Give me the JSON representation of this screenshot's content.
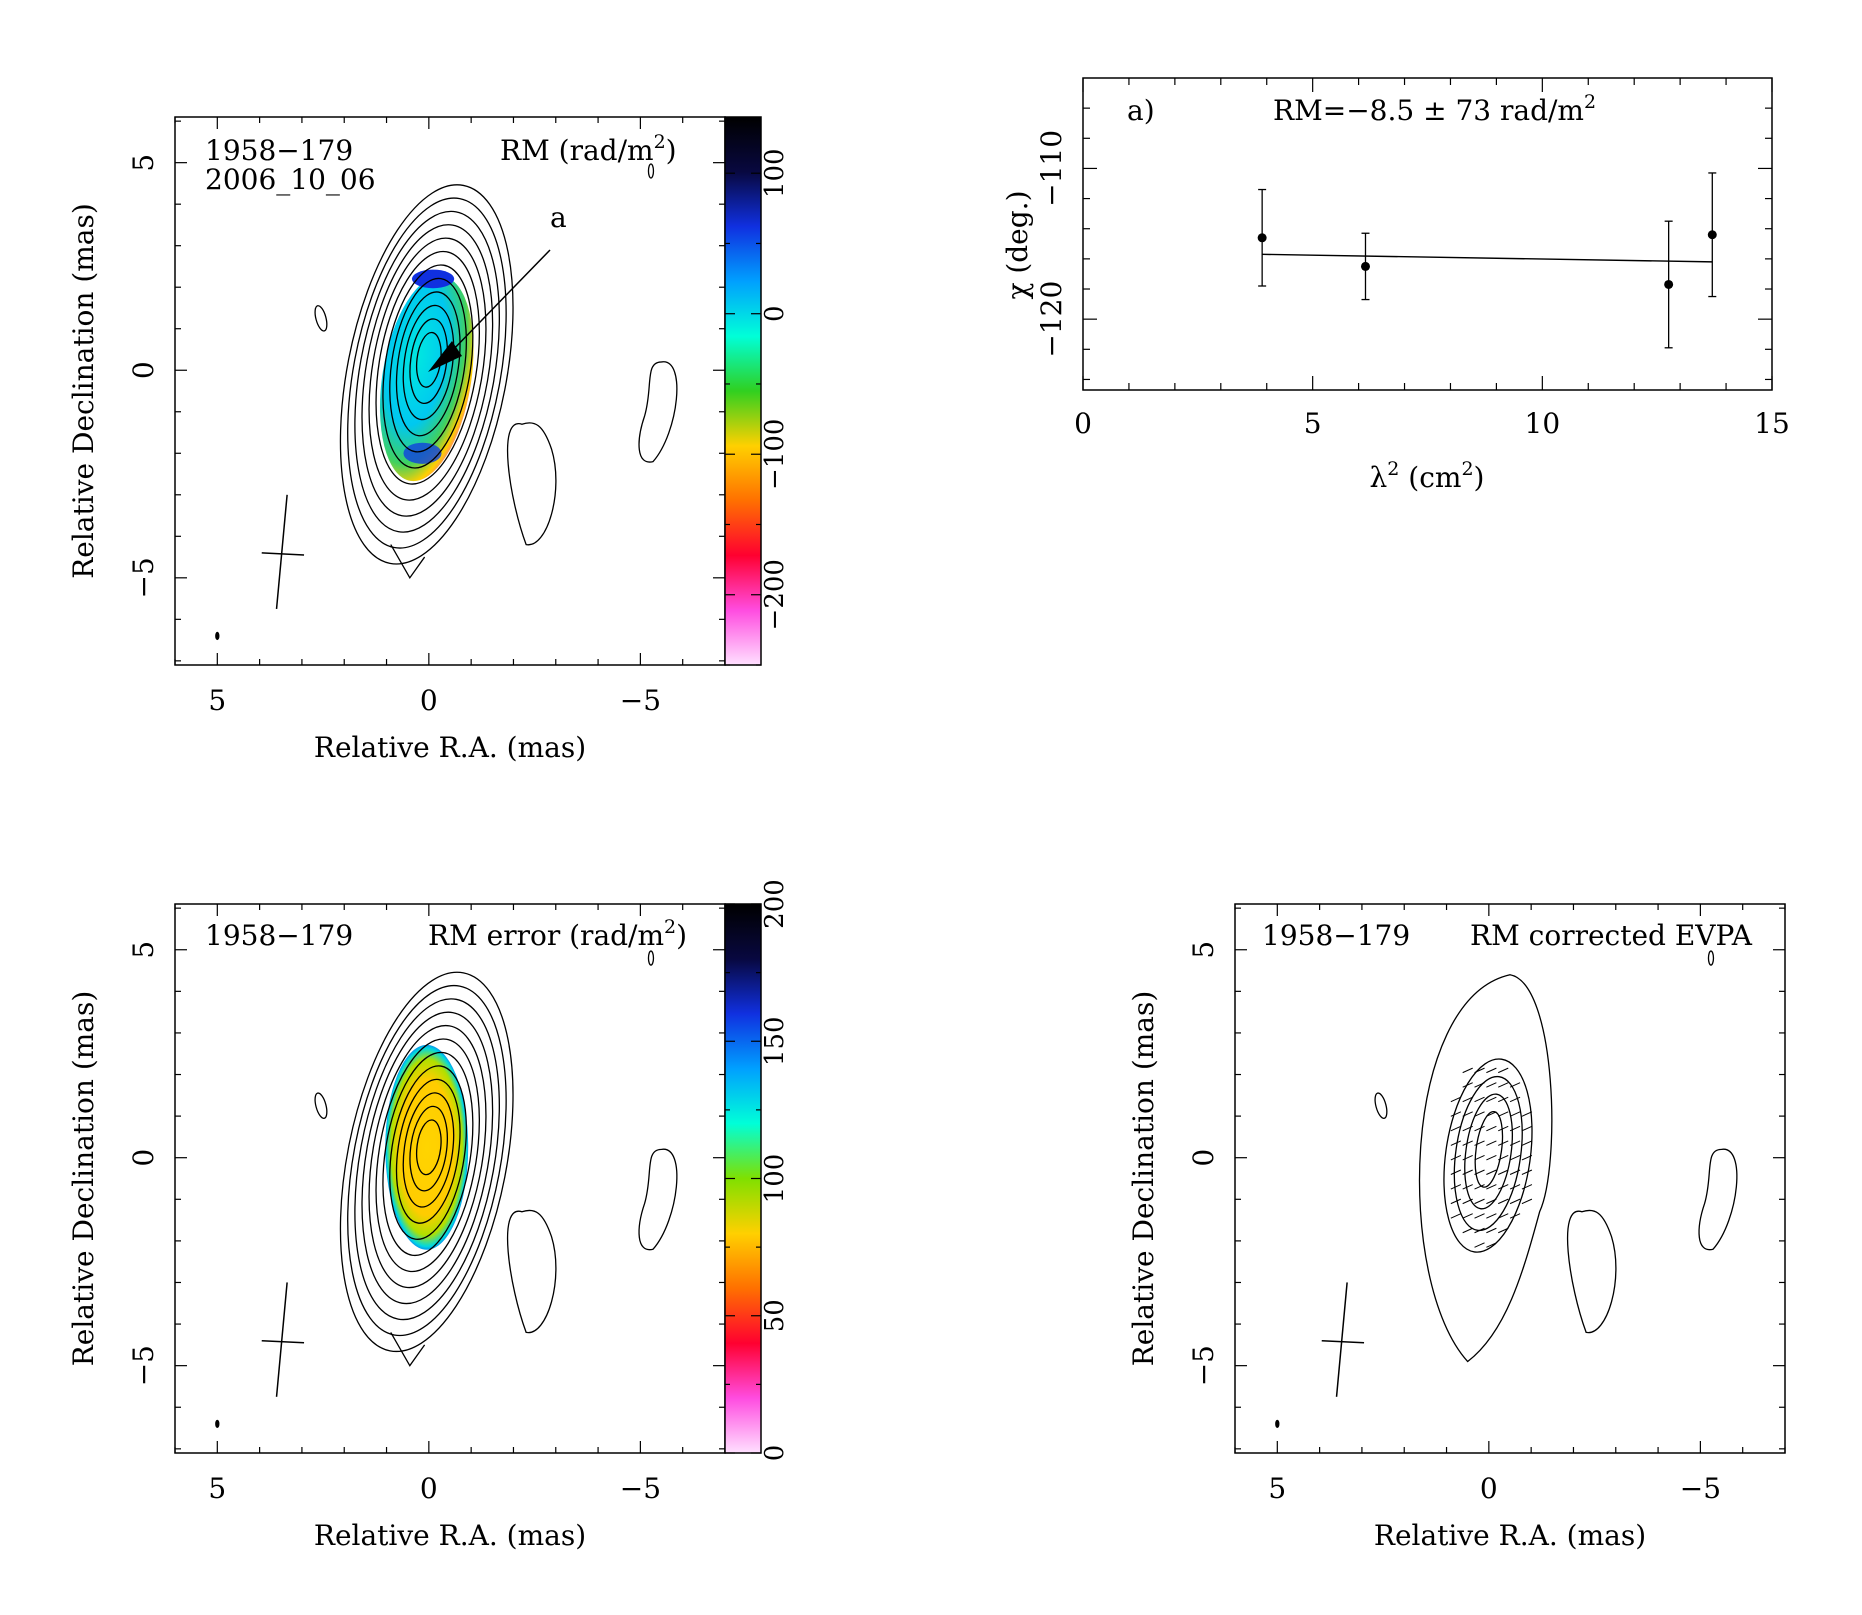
{
  "panels": {
    "rm_map": {
      "source": "1958−179",
      "date": "2006_10_06",
      "quantity": "RM (rad/m",
      "quantity_sup": "2",
      "quantity_end": ")",
      "annotation": "a",
      "colorbar_ticks": [
        {
          "value": 100,
          "label": "100"
        },
        {
          "value": 0,
          "label": "0"
        },
        {
          "value": -100,
          "label": "−100"
        },
        {
          "value": -200,
          "label": "−200"
        }
      ]
    },
    "rm_error": {
      "source": "1958−179",
      "quantity": "RM error (rad/m",
      "quantity_sup": "2",
      "quantity_end": ")",
      "colorbar_ticks": [
        {
          "value": 200,
          "label": "200"
        },
        {
          "value": 150,
          "label": "150"
        },
        {
          "value": 100,
          "label": "100"
        },
        {
          "value": 50,
          "label": "50"
        },
        {
          "value": 0,
          "label": "0"
        }
      ]
    },
    "evpa": {
      "source": "1958−179",
      "quantity": "RM corrected EVPA"
    },
    "fit": {
      "label": "a)",
      "result": "RM=−8.5 ± 73 rad/m",
      "result_sup": "2"
    }
  },
  "map_axes": {
    "xlabel": "Relative R.A. (mas)",
    "ylabel": "Relative Declination (mas)",
    "xticks": [
      {
        "value": 5,
        "label": "5"
      },
      {
        "value": 0,
        "label": "0"
      },
      {
        "value": -5,
        "label": "−5"
      }
    ],
    "yticks": [
      {
        "value": 5,
        "label": "5"
      },
      {
        "value": 0,
        "label": "0"
      },
      {
        "value": -5,
        "label": "−5"
      }
    ]
  },
  "fit_axes": {
    "ylabel": "χ (deg.)",
    "xlabel_main": "λ",
    "xlabel_sup": "2",
    "xlabel_rest": " (cm",
    "xlabel_sup2": "2",
    "xlabel_end": ")",
    "xticks": [
      {
        "value": 0,
        "label": "0"
      },
      {
        "value": 5,
        "label": "5"
      },
      {
        "value": 10,
        "label": "10"
      },
      {
        "value": 15,
        "label": "15"
      }
    ],
    "yticks": [
      {
        "value": -110,
        "label": "−110"
      },
      {
        "value": -120,
        "label": "−120"
      }
    ]
  },
  "chart_data": [
    {
      "type": "scatter",
      "x": [
        3.9,
        6.15,
        12.75,
        13.7
      ],
      "y": [
        -114.6,
        -116.5,
        -117.7,
        -114.4
      ],
      "yerr": [
        3.2,
        2.2,
        4.2,
        4.1
      ],
      "fit_line": {
        "x": [
          3.9,
          13.7
        ],
        "y": [
          -115.7,
          -116.2
        ]
      },
      "xlim": [
        0,
        15
      ],
      "ylim": [
        -124.7,
        -104
      ]
    },
    {
      "type": "heatmap",
      "xlim": [
        6,
        -7
      ],
      "ylim": [
        -7.1,
        6.1
      ],
      "colorbar_range": [
        -250,
        140
      ]
    },
    {
      "type": "heatmap",
      "xlim": [
        6,
        -7
      ],
      "ylim": [
        -7.1,
        6.1
      ],
      "colorbar_range": [
        0,
        200
      ]
    },
    {
      "type": "scatter",
      "xlim": [
        6,
        -7
      ],
      "ylim": [
        -7.1,
        6.1
      ]
    }
  ],
  "colors": {
    "rm_scale": [
      "#ffe0ff",
      "#ff4ce0",
      "#ff0030",
      "#ff7000",
      "#ffd000",
      "#30d020",
      "#00ffd8",
      "#00a0ff",
      "#1030e0",
      "#080840",
      "#000000"
    ],
    "err_scale": [
      "#ffe0ff",
      "#ff4ce0",
      "#ff0030",
      "#ff7000",
      "#ffd000",
      "#80e000",
      "#00ffd8",
      "#00a0ff",
      "#1030e0",
      "#080840",
      "#000000"
    ]
  }
}
